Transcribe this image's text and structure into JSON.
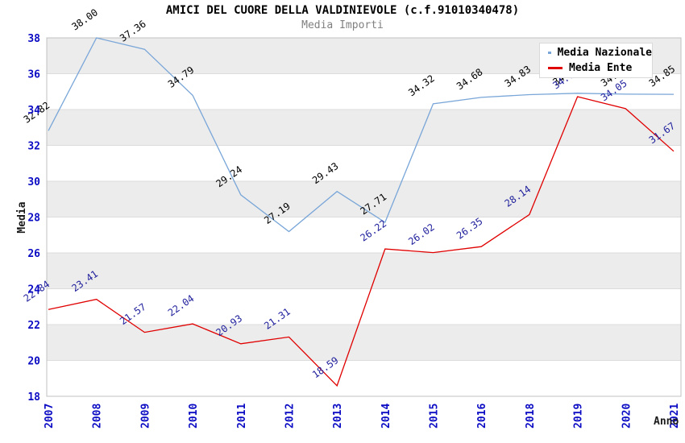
{
  "header": {
    "title": "AMICI DEL CUORE DELLA VALDINIEVOLE (c.f.91010340478)",
    "subtitle": "Media Importi"
  },
  "colors": {
    "tick_label": "#0b0bc4",
    "nazionale_line": "#79a6d8",
    "ente_line": "#e00000",
    "nazionale_point_label": "#000000",
    "ente_point_label": "#22229e",
    "band_gray": "#ececec",
    "gridline": "#dcdcdc",
    "plot_border": "#c0c0c0",
    "subtitle_gray": "#808080"
  },
  "chart_data": {
    "type": "line",
    "title": "AMICI DEL CUORE DELLA VALDINIEVOLE (c.f.91010340478)",
    "subtitle": "Media Importi",
    "categories": [
      "2007",
      "2008",
      "2009",
      "2010",
      "2011",
      "2012",
      "2013",
      "2014",
      "2015",
      "2016",
      "2018",
      "2019",
      "2020",
      "2021"
    ],
    "series": [
      {
        "name": "Media Nazionale",
        "color": "#79a6d8",
        "label_color": "#000000",
        "values": [
          32.82,
          38.0,
          37.36,
          34.79,
          29.24,
          27.19,
          29.43,
          27.71,
          34.32,
          34.68,
          34.83,
          34.91,
          34.86,
          34.85
        ]
      },
      {
        "name": "Media Ente",
        "color": "#e00000",
        "label_color": "#22229e",
        "values": [
          22.84,
          23.41,
          21.57,
          22.04,
          20.93,
          21.31,
          18.59,
          26.22,
          26.02,
          26.35,
          28.14,
          34.72,
          34.05,
          31.67
        ]
      }
    ],
    "xlabel": "Anno",
    "ylabel": "Media",
    "ylim": [
      18,
      38
    ],
    "y_tick_step": 2,
    "y_ticks": [
      18,
      20,
      22,
      24,
      26,
      28,
      30,
      32,
      34,
      36,
      38
    ],
    "grid": "horizontal-bands",
    "legend_position": "top-right",
    "point_labels": "values shown rotated above each point, 2 decimals"
  }
}
